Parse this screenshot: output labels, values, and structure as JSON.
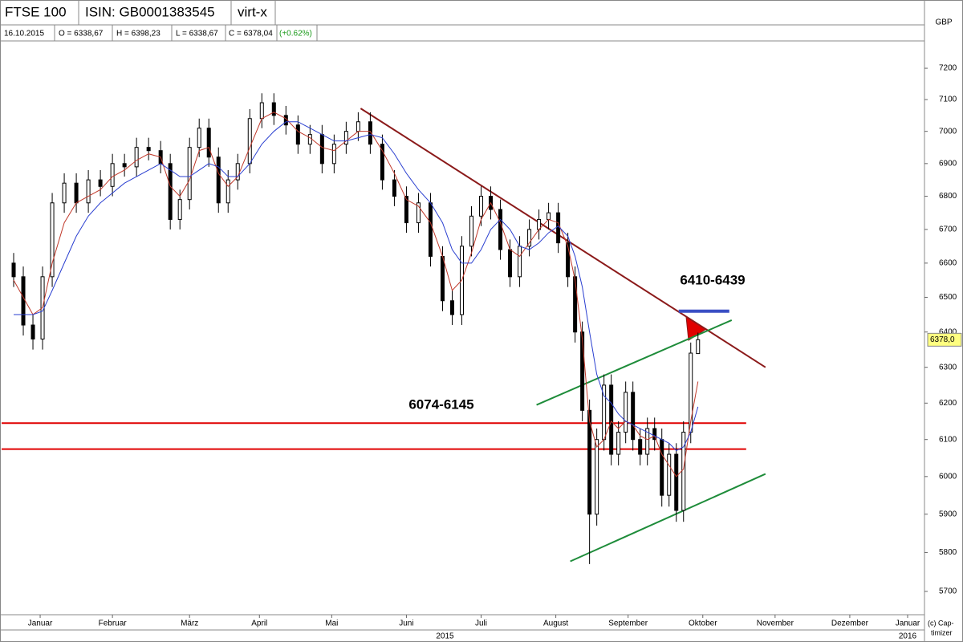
{
  "header": {
    "symbol": "FTSE 100",
    "isin": "ISIN: GB0001383545",
    "exchange": "virt-x",
    "date": "16.10.2015",
    "open": "O = 6338,67",
    "high": "H = 6398,23",
    "low": "L = 6338,67",
    "close": "C = 6378,04",
    "change": "(+0.62%)"
  },
  "currency": "GBP",
  "copyright": [
    "(c) Cap-",
    "timizer"
  ],
  "chart_data": {
    "type": "candlestick",
    "log_y": true,
    "ylim": [
      5643,
      7278
    ],
    "yticks": [
      5700,
      5800,
      5900,
      6000,
      6100,
      6200,
      6300,
      6400,
      6500,
      6600,
      6700,
      6800,
      6900,
      7000,
      7100,
      7200
    ],
    "xlim": [
      0,
      383
    ],
    "xticks": [
      {
        "value": 16,
        "label": "Januar"
      },
      {
        "value": 46,
        "label": "Februar"
      },
      {
        "value": 78,
        "label": "März"
      },
      {
        "value": 107,
        "label": "April"
      },
      {
        "value": 137,
        "label": "Mai"
      },
      {
        "value": 168,
        "label": "Juni"
      },
      {
        "value": 199,
        "label": "Juli"
      },
      {
        "value": 230,
        "label": "August"
      },
      {
        "value": 260,
        "label": "September"
      },
      {
        "value": 291,
        "label": "Oktober"
      },
      {
        "value": 321,
        "label": "November"
      },
      {
        "value": 352,
        "label": "Dezember"
      },
      {
        "value": 376,
        "label": "Januar"
      }
    ],
    "year_labels": [
      {
        "value": 184,
        "label": "2015"
      },
      {
        "value": 376,
        "label": "2016"
      }
    ],
    "x": [
      5,
      9,
      13,
      17,
      21,
      26,
      31,
      36,
      41,
      46,
      51,
      56,
      61,
      66,
      70,
      74,
      78,
      82,
      86,
      90,
      94,
      98,
      103,
      108,
      113,
      118,
      123,
      128,
      133,
      138,
      143,
      148,
      153,
      158,
      163,
      168,
      173,
      178,
      183,
      187,
      191,
      195,
      199,
      203,
      207,
      211,
      215,
      219,
      223,
      227,
      231,
      235,
      238,
      241,
      244,
      247,
      250,
      253,
      256,
      259,
      262,
      265,
      268,
      271,
      274,
      277,
      280,
      283,
      286,
      289
    ],
    "open": [
      6600,
      6560,
      6420,
      6380,
      6560,
      6780,
      6840,
      6780,
      6850,
      6830,
      6900,
      6890,
      6950,
      6940,
      6900,
      6730,
      6790,
      6950,
      7010,
      6920,
      6780,
      6850,
      6900,
      7040,
      7090,
      7050,
      7020,
      6960,
      6990,
      6900,
      6960,
      7000,
      7030,
      6960,
      6850,
      6800,
      6720,
      6780,
      6620,
      6490,
      6450,
      6650,
      6740,
      6800,
      6760,
      6640,
      6560,
      6650,
      6700,
      6730,
      6750,
      6660,
      6560,
      6400,
      6180,
      5900,
      6100,
      6250,
      6060,
      6120,
      6230,
      6100,
      6060,
      6130,
      6100,
      5950,
      6060,
      5910,
      6120,
      6338.67
    ],
    "high": [
      6630,
      6590,
      6450,
      6590,
      6810,
      6870,
      6870,
      6880,
      6880,
      6930,
      6930,
      6980,
      6980,
      6970,
      6930,
      6820,
      6980,
      7040,
      7040,
      6950,
      6880,
      6930,
      7070,
      7120,
      7120,
      7080,
      7050,
      7020,
      7020,
      6990,
      7030,
      7060,
      7060,
      6990,
      6880,
      6830,
      6810,
      6810,
      6650,
      6520,
      6680,
      6770,
      6830,
      6830,
      6790,
      6670,
      6680,
      6730,
      6760,
      6780,
      6780,
      6690,
      6590,
      6430,
      6210,
      6130,
      6280,
      6280,
      6150,
      6260,
      6260,
      6130,
      6160,
      6160,
      6130,
      6090,
      6090,
      6150,
      6370,
      6398.23
    ],
    "low": [
      6530,
      6390,
      6350,
      6350,
      6530,
      6750,
      6750,
      6750,
      6800,
      6800,
      6860,
      6860,
      6910,
      6870,
      6700,
      6700,
      6760,
      6920,
      6890,
      6750,
      6750,
      6820,
      6870,
      7010,
      7020,
      6990,
      6930,
      6930,
      6870,
      6870,
      6930,
      6970,
      6930,
      6820,
      6770,
      6690,
      6690,
      6590,
      6460,
      6420,
      6420,
      6620,
      6710,
      6730,
      6610,
      6530,
      6530,
      6620,
      6670,
      6700,
      6630,
      6530,
      6370,
      6150,
      5770,
      5870,
      6070,
      6030,
      6030,
      6090,
      6070,
      6030,
      6030,
      6070,
      5920,
      5920,
      5880,
      5880,
      6090,
      6338.67
    ],
    "close": [
      6560,
      6420,
      6380,
      6560,
      6780,
      6840,
      6780,
      6850,
      6830,
      6900,
      6890,
      6950,
      6940,
      6900,
      6730,
      6790,
      6950,
      7010,
      6920,
      6780,
      6850,
      6900,
      7040,
      7090,
      7050,
      7020,
      6960,
      6990,
      6900,
      6960,
      7000,
      7030,
      6960,
      6850,
      6800,
      6720,
      6780,
      6620,
      6490,
      6450,
      6650,
      6740,
      6800,
      6760,
      6640,
      6560,
      6650,
      6700,
      6730,
      6750,
      6660,
      6560,
      6400,
      6180,
      5900,
      6100,
      6250,
      6060,
      6120,
      6230,
      6100,
      6060,
      6130,
      6100,
      5950,
      6060,
      5910,
      6120,
      6340,
      6378.04
    ],
    "moving_averages": [
      {
        "color": "#c0392b",
        "values": [
          6550,
          6500,
          6450,
          6470,
          6600,
          6720,
          6780,
          6800,
          6820,
          6860,
          6880,
          6910,
          6930,
          6920,
          6830,
          6800,
          6850,
          6940,
          6950,
          6870,
          6830,
          6860,
          6950,
          7040,
          7060,
          7040,
          7000,
          6980,
          6950,
          6940,
          6970,
          7000,
          7000,
          6940,
          6870,
          6790,
          6770,
          6720,
          6620,
          6520,
          6550,
          6630,
          6730,
          6780,
          6720,
          6640,
          6620,
          6660,
          6700,
          6730,
          6720,
          6650,
          6550,
          6380,
          6150,
          6080,
          6100,
          6150,
          6130,
          6150,
          6140,
          6110,
          6100,
          6110,
          6060,
          6030,
          6000,
          6020,
          6150,
          6260
        ]
      },
      {
        "color": "#2a3fd0",
        "values": [
          6450,
          6450,
          6450,
          6460,
          6520,
          6600,
          6680,
          6740,
          6780,
          6810,
          6840,
          6860,
          6880,
          6900,
          6880,
          6860,
          6860,
          6880,
          6900,
          6890,
          6860,
          6860,
          6900,
          6960,
          7000,
          7030,
          7030,
          7010,
          6990,
          6970,
          6970,
          6980,
          6990,
          6980,
          6930,
          6870,
          6820,
          6780,
          6720,
          6640,
          6600,
          6600,
          6640,
          6700,
          6730,
          6700,
          6650,
          6640,
          6660,
          6690,
          6710,
          6680,
          6620,
          6530,
          6400,
          6280,
          6220,
          6200,
          6170,
          6150,
          6140,
          6130,
          6120,
          6110,
          6100,
          6090,
          6070,
          6080,
          6120,
          6190
        ]
      }
    ],
    "trend_lines": [
      {
        "color": "#8b1a1a",
        "x": [
          149,
          317
        ],
        "y": [
          7072,
          6300
        ]
      },
      {
        "color": "#1e8c3a",
        "x": [
          222,
          303
        ],
        "y": [
          6195,
          6434
        ]
      },
      {
        "color": "#1e8c3a",
        "x": [
          236,
          317
        ],
        "y": [
          5777,
          6007
        ]
      },
      {
        "color": "#e00000",
        "x": [
          0,
          309
        ],
        "y": [
          6145,
          6145
        ]
      },
      {
        "color": "#e00000",
        "x": [
          0,
          309
        ],
        "y": [
          6074,
          6074
        ]
      },
      {
        "color": "#3a4fc4",
        "x": [
          281,
          302
        ],
        "y": [
          6460,
          6460
        ]
      }
    ],
    "annotations": [
      "6410-6439",
      "6074-6145"
    ],
    "last_price": {
      "value": 6378.0,
      "label": "6378,0"
    }
  }
}
